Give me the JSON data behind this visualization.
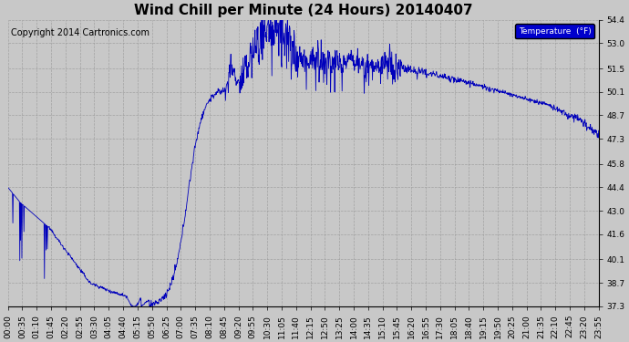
{
  "title": "Wind Chill per Minute (24 Hours) 20140407",
  "copyright_text": "Copyright 2014 Cartronics.com",
  "line_color": "#0000BB",
  "legend_label": "Temperature  (°F)",
  "legend_bg": "#0000CC",
  "legend_text_color": "#FFFFFF",
  "bg_color": "#C8C8C8",
  "plot_bg_color": "#C8C8C8",
  "grid_color": "#999999",
  "ylim_min": 37.3,
  "ylim_max": 54.4,
  "yticks": [
    37.3,
    38.7,
    40.1,
    41.6,
    43.0,
    44.4,
    45.8,
    47.3,
    48.7,
    50.1,
    51.5,
    53.0,
    54.4
  ],
  "xtick_labels": [
    "00:00",
    "00:35",
    "01:10",
    "01:45",
    "02:20",
    "02:55",
    "03:30",
    "04:05",
    "04:40",
    "05:15",
    "05:50",
    "06:25",
    "07:00",
    "07:35",
    "08:10",
    "08:45",
    "09:20",
    "09:55",
    "10:30",
    "11:05",
    "11:40",
    "12:15",
    "12:50",
    "13:25",
    "14:00",
    "14:35",
    "15:10",
    "15:45",
    "16:20",
    "16:55",
    "17:30",
    "18:05",
    "18:40",
    "19:15",
    "19:50",
    "20:25",
    "21:00",
    "21:35",
    "22:10",
    "22:45",
    "23:20",
    "23:55"
  ],
  "title_fontsize": 11,
  "tick_fontsize": 6.5,
  "copyright_fontsize": 7,
  "figwidth": 6.9,
  "figheight": 3.75,
  "dpi": 100
}
